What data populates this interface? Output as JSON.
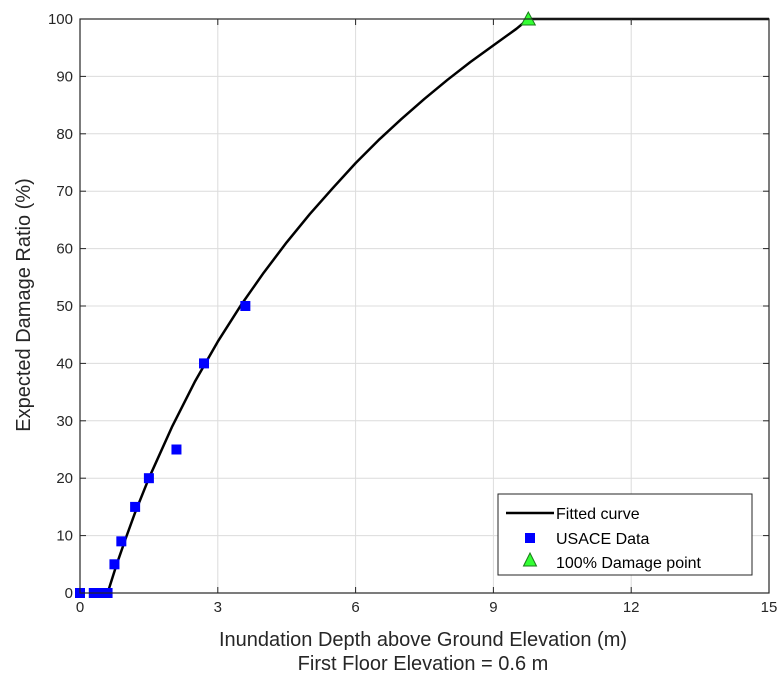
{
  "chart_data": {
    "type": "scatter",
    "xlabel": "Inundation Depth above Ground Elevation (m)",
    "xlabel2": "First Floor Elevation = 0.6 m",
    "ylabel": "Expected Damage Ratio (%)",
    "xlim": [
      0,
      15
    ],
    "ylim": [
      0,
      100
    ],
    "xticks": [
      0,
      3,
      6,
      9,
      12,
      15
    ],
    "yticks": [
      0,
      10,
      20,
      30,
      40,
      50,
      60,
      70,
      80,
      90,
      100
    ],
    "grid": true,
    "legend_position": "bottom-right",
    "series": [
      {
        "name": "Fitted curve",
        "kind": "line",
        "color": "#000000",
        "x": [
          0.6,
          0.8,
          1.0,
          1.2,
          1.5,
          2.0,
          2.5,
          3.0,
          3.5,
          4.0,
          4.5,
          5.0,
          5.5,
          6.0,
          6.5,
          7.0,
          7.5,
          8.0,
          8.5,
          9.0,
          9.5,
          9.76,
          15.0
        ],
        "y": [
          0,
          5.0,
          9.6,
          14.0,
          20.0,
          28.9,
          36.8,
          43.8,
          50.1,
          55.8,
          61.1,
          66.0,
          70.5,
          74.9,
          78.9,
          82.6,
          86.1,
          89.4,
          92.5,
          95.4,
          98.3,
          100,
          100
        ]
      },
      {
        "name": "USACE Data",
        "kind": "marker",
        "marker": "square",
        "color": "#0000ff",
        "x": [
          0.0,
          0.3,
          0.45,
          0.6,
          0.75,
          0.9,
          1.2,
          1.5,
          2.1,
          2.7,
          3.6
        ],
        "y": [
          0,
          0,
          0,
          0,
          5,
          9,
          15,
          20,
          25,
          40,
          50
        ]
      },
      {
        "name": "100% Damage point",
        "kind": "marker",
        "marker": "triangle",
        "color": "#33ff33",
        "x": [
          9.76
        ],
        "y": [
          100
        ]
      }
    ]
  }
}
